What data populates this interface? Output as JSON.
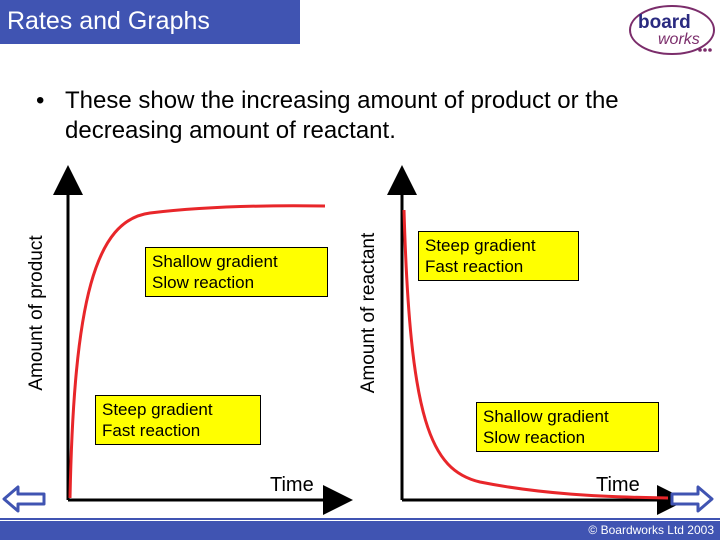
{
  "header": {
    "title": "Rates and Graphs"
  },
  "logo": {
    "line1": "board",
    "line2": "works"
  },
  "bullet": {
    "marker": "•",
    "text": "These show the increasing amount of product or the decreasing amount of reactant."
  },
  "graph_left": {
    "ylabel": "Amount of product",
    "xlabel": "Time",
    "note_top": {
      "line1": "Shallow gradient",
      "line2": "Slow reaction"
    },
    "note_bottom": {
      "line1": "Steep gradient",
      "line2": "Fast reaction"
    }
  },
  "graph_right": {
    "ylabel": "Amount of reactant",
    "xlabel": "Time",
    "note_top": {
      "line1": "Steep gradient",
      "line2": "Fast reaction"
    },
    "note_bottom": {
      "line1": "Shallow gradient",
      "line2": "Slow reaction"
    }
  },
  "colors": {
    "accent": "#4054b2",
    "curve": "#e8262a",
    "note_bg": "#ffff00",
    "arrow": "#4054b2"
  },
  "footer": {
    "copyright": "© Boardworks Ltd 2003"
  },
  "nav": {
    "prev_icon": "left-arrow-icon",
    "next_icon": "right-arrow-icon"
  }
}
